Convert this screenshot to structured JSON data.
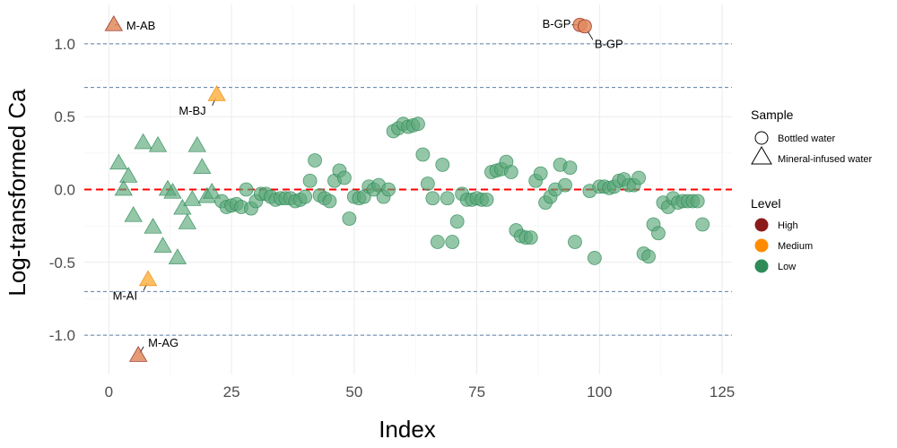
{
  "chart_data": {
    "type": "scatter",
    "title": "",
    "xlabel": "Index",
    "ylabel": "Log-transformed Ca",
    "xlim": [
      -5,
      127
    ],
    "ylim": [
      -1.27,
      1.27
    ],
    "xticks": [
      0,
      25,
      50,
      75,
      100,
      125
    ],
    "yticks": [
      -1.0,
      -0.5,
      0.0,
      0.5,
      1.0
    ],
    "ytick_labels": [
      "-1.0",
      "-0.5",
      "0.0",
      "0.5",
      "1.0"
    ],
    "grid": true,
    "reference_lines": {
      "red_dashed": [
        0
      ],
      "blue_dashed": [
        -1.0,
        -0.7,
        0.7,
        1.0
      ]
    },
    "colors": {
      "High": "#8B1A1A",
      "Medium": "#FF8C00",
      "Low": "#2E8B57",
      "red_line": "#FF0000",
      "blue_line": "#5A7FA8"
    },
    "legends": [
      {
        "title": "Sample",
        "entries": [
          {
            "label": "Bottled water",
            "shape": "circle"
          },
          {
            "label": "Mineral-infused water",
            "shape": "triangle"
          }
        ]
      },
      {
        "title": "Level",
        "entries": [
          {
            "label": "High",
            "color": "#8B1A1A"
          },
          {
            "label": "Medium",
            "color": "#FF8C00"
          },
          {
            "label": "Low",
            "color": "#2E8B57"
          }
        ]
      }
    ],
    "legend_placement": "right",
    "series": [
      {
        "sample": "Mineral-infused water",
        "shape": "triangle",
        "points": [
          {
            "x": 1,
            "y": 1.13,
            "level": "High",
            "label": "M-AB"
          },
          {
            "x": 2,
            "y": 0.18,
            "level": "Low"
          },
          {
            "x": 3,
            "y": 0.0,
            "level": "Low"
          },
          {
            "x": 4,
            "y": 0.09,
            "level": "Low"
          },
          {
            "x": 5,
            "y": -0.18,
            "level": "Low"
          },
          {
            "x": 6,
            "y": -1.14,
            "level": "High",
            "label": "M-AG"
          },
          {
            "x": 7,
            "y": 0.32,
            "level": "Low"
          },
          {
            "x": 8,
            "y": -0.62,
            "level": "Medium",
            "label": "M-AI"
          },
          {
            "x": 9,
            "y": -0.26,
            "level": "Low"
          },
          {
            "x": 10,
            "y": 0.3,
            "level": "Low"
          },
          {
            "x": 11,
            "y": -0.39,
            "level": "Low"
          },
          {
            "x": 12,
            "y": 0.0,
            "level": "Low"
          },
          {
            "x": 13,
            "y": -0.02,
            "level": "Low"
          },
          {
            "x": 14,
            "y": -0.47,
            "level": "Low"
          },
          {
            "x": 15,
            "y": -0.13,
            "level": "Low"
          },
          {
            "x": 16,
            "y": -0.23,
            "level": "Low"
          },
          {
            "x": 17,
            "y": -0.07,
            "level": "Low"
          },
          {
            "x": 18,
            "y": 0.3,
            "level": "Low"
          },
          {
            "x": 19,
            "y": 0.15,
            "level": "Low"
          },
          {
            "x": 20,
            "y": -0.05,
            "level": "Low"
          },
          {
            "x": 21,
            "y": -0.02,
            "level": "Low"
          },
          {
            "x": 22,
            "y": 0.65,
            "level": "Medium",
            "label": "M-BJ"
          }
        ]
      },
      {
        "sample": "Bottled water",
        "shape": "circle",
        "points": [
          {
            "x": 23,
            "y": -0.08,
            "level": "Low"
          },
          {
            "x": 24,
            "y": -0.12,
            "level": "Low"
          },
          {
            "x": 25,
            "y": -0.11,
            "level": "Low"
          },
          {
            "x": 26,
            "y": -0.1,
            "level": "Low"
          },
          {
            "x": 27,
            "y": -0.12,
            "level": "Low"
          },
          {
            "x": 28,
            "y": 0.0,
            "level": "Low"
          },
          {
            "x": 29,
            "y": -0.13,
            "level": "Low"
          },
          {
            "x": 30,
            "y": -0.08,
            "level": "Low"
          },
          {
            "x": 31,
            "y": -0.03,
            "level": "Low"
          },
          {
            "x": 32,
            "y": -0.03,
            "level": "Low"
          },
          {
            "x": 33,
            "y": -0.05,
            "level": "Low"
          },
          {
            "x": 34,
            "y": -0.07,
            "level": "Low"
          },
          {
            "x": 35,
            "y": -0.06,
            "level": "Low"
          },
          {
            "x": 36,
            "y": -0.06,
            "level": "Low"
          },
          {
            "x": 37,
            "y": -0.06,
            "level": "Low"
          },
          {
            "x": 38,
            "y": -0.08,
            "level": "Low"
          },
          {
            "x": 39,
            "y": -0.07,
            "level": "Low"
          },
          {
            "x": 40,
            "y": -0.05,
            "level": "Low"
          },
          {
            "x": 41,
            "y": 0.06,
            "level": "Low"
          },
          {
            "x": 42,
            "y": 0.2,
            "level": "Low"
          },
          {
            "x": 43,
            "y": -0.04,
            "level": "Low"
          },
          {
            "x": 44,
            "y": -0.06,
            "level": "Low"
          },
          {
            "x": 45,
            "y": -0.08,
            "level": "Low"
          },
          {
            "x": 46,
            "y": 0.06,
            "level": "Low"
          },
          {
            "x": 47,
            "y": 0.13,
            "level": "Low"
          },
          {
            "x": 48,
            "y": 0.08,
            "level": "Low"
          },
          {
            "x": 49,
            "y": -0.2,
            "level": "Low"
          },
          {
            "x": 50,
            "y": -0.05,
            "level": "Low"
          },
          {
            "x": 51,
            "y": -0.06,
            "level": "Low"
          },
          {
            "x": 52,
            "y": -0.05,
            "level": "Low"
          },
          {
            "x": 53,
            "y": 0.02,
            "level": "Low"
          },
          {
            "x": 54,
            "y": 0.0,
            "level": "Low"
          },
          {
            "x": 55,
            "y": 0.03,
            "level": "Low"
          },
          {
            "x": 56,
            "y": -0.05,
            "level": "Low"
          },
          {
            "x": 57,
            "y": 0.0,
            "level": "Low"
          },
          {
            "x": 58,
            "y": 0.4,
            "level": "Low"
          },
          {
            "x": 59,
            "y": 0.42,
            "level": "Low"
          },
          {
            "x": 60,
            "y": 0.45,
            "level": "Low"
          },
          {
            "x": 61,
            "y": 0.43,
            "level": "Low"
          },
          {
            "x": 62,
            "y": 0.44,
            "level": "Low"
          },
          {
            "x": 63,
            "y": 0.45,
            "level": "Low"
          },
          {
            "x": 64,
            "y": 0.24,
            "level": "Low"
          },
          {
            "x": 65,
            "y": 0.04,
            "level": "Low"
          },
          {
            "x": 66,
            "y": -0.06,
            "level": "Low"
          },
          {
            "x": 67,
            "y": -0.36,
            "level": "Low"
          },
          {
            "x": 68,
            "y": 0.17,
            "level": "Low"
          },
          {
            "x": 69,
            "y": -0.06,
            "level": "Low"
          },
          {
            "x": 70,
            "y": -0.36,
            "level": "Low"
          },
          {
            "x": 71,
            "y": -0.22,
            "level": "Low"
          },
          {
            "x": 72,
            "y": -0.03,
            "level": "Low"
          },
          {
            "x": 73,
            "y": -0.07,
            "level": "Low"
          },
          {
            "x": 74,
            "y": -0.07,
            "level": "Low"
          },
          {
            "x": 75,
            "y": -0.06,
            "level": "Low"
          },
          {
            "x": 76,
            "y": -0.07,
            "level": "Low"
          },
          {
            "x": 77,
            "y": -0.07,
            "level": "Low"
          },
          {
            "x": 78,
            "y": 0.12,
            "level": "Low"
          },
          {
            "x": 79,
            "y": 0.13,
            "level": "Low"
          },
          {
            "x": 80,
            "y": 0.14,
            "level": "Low"
          },
          {
            "x": 81,
            "y": 0.19,
            "level": "Low"
          },
          {
            "x": 82,
            "y": 0.12,
            "level": "Low"
          },
          {
            "x": 83,
            "y": -0.28,
            "level": "Low"
          },
          {
            "x": 84,
            "y": -0.32,
            "level": "Low"
          },
          {
            "x": 85,
            "y": -0.33,
            "level": "Low"
          },
          {
            "x": 86,
            "y": -0.33,
            "level": "Low"
          },
          {
            "x": 87,
            "y": 0.06,
            "level": "Low"
          },
          {
            "x": 88,
            "y": 0.11,
            "level": "Low"
          },
          {
            "x": 89,
            "y": -0.09,
            "level": "Low"
          },
          {
            "x": 90,
            "y": -0.05,
            "level": "Low"
          },
          {
            "x": 91,
            "y": 0.0,
            "level": "Low"
          },
          {
            "x": 92,
            "y": 0.17,
            "level": "Low"
          },
          {
            "x": 93,
            "y": 0.03,
            "level": "Low"
          },
          {
            "x": 94,
            "y": 0.15,
            "level": "Low"
          },
          {
            "x": 95,
            "y": -0.36,
            "level": "Low"
          },
          {
            "x": 96,
            "y": 1.13,
            "level": "High",
            "label": "B-GP"
          },
          {
            "x": 97,
            "y": 1.12,
            "level": "High",
            "label": "B-GP"
          },
          {
            "x": 98,
            "y": -0.01,
            "level": "Low"
          },
          {
            "x": 99,
            "y": -0.47,
            "level": "Low"
          },
          {
            "x": 100,
            "y": 0.02,
            "level": "Low"
          },
          {
            "x": 101,
            "y": 0.02,
            "level": "Low"
          },
          {
            "x": 102,
            "y": 0.01,
            "level": "Low"
          },
          {
            "x": 103,
            "y": 0.02,
            "level": "Low"
          },
          {
            "x": 104,
            "y": 0.06,
            "level": "Low"
          },
          {
            "x": 105,
            "y": 0.07,
            "level": "Low"
          },
          {
            "x": 106,
            "y": 0.03,
            "level": "Low"
          },
          {
            "x": 107,
            "y": 0.03,
            "level": "Low"
          },
          {
            "x": 108,
            "y": 0.08,
            "level": "Low"
          },
          {
            "x": 109,
            "y": -0.44,
            "level": "Low"
          },
          {
            "x": 110,
            "y": -0.46,
            "level": "Low"
          },
          {
            "x": 111,
            "y": -0.24,
            "level": "Low"
          },
          {
            "x": 112,
            "y": -0.3,
            "level": "Low"
          },
          {
            "x": 113,
            "y": -0.09,
            "level": "Low"
          },
          {
            "x": 114,
            "y": -0.12,
            "level": "Low"
          },
          {
            "x": 115,
            "y": -0.06,
            "level": "Low"
          },
          {
            "x": 116,
            "y": -0.09,
            "level": "Low"
          },
          {
            "x": 117,
            "y": -0.08,
            "level": "Low"
          },
          {
            "x": 118,
            "y": -0.08,
            "level": "Low"
          },
          {
            "x": 119,
            "y": -0.08,
            "level": "Low"
          },
          {
            "x": 120,
            "y": -0.08,
            "level": "Low"
          },
          {
            "x": 121,
            "y": -0.24,
            "level": "Low"
          }
        ]
      }
    ]
  }
}
